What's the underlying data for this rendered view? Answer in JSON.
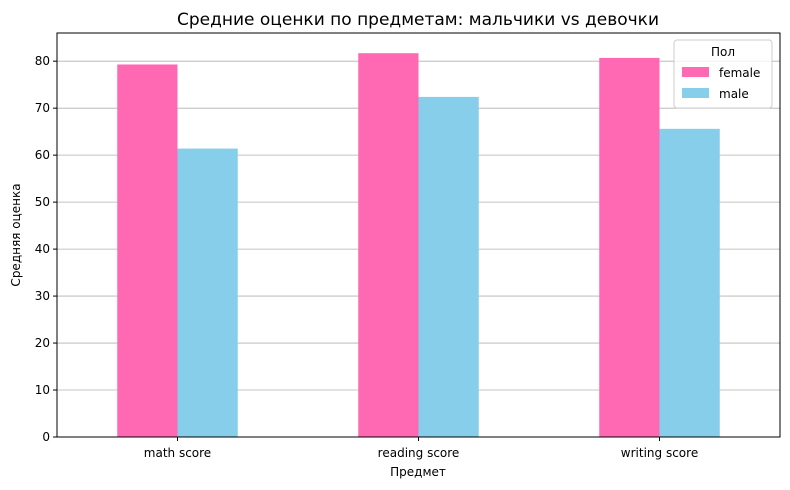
{
  "chart_data": {
    "type": "bar",
    "title": "Средние оценки по предметам: мальчики vs девочки",
    "xlabel": "Предмет",
    "ylabel": "Средняя оценка",
    "categories": [
      "math score",
      "reading score",
      "writing score"
    ],
    "series": [
      {
        "name": "female",
        "color": "#ff69b4",
        "values": [
          79.3,
          81.7,
          80.7
        ]
      },
      {
        "name": "male",
        "color": "#87ceeb",
        "values": [
          61.4,
          72.4,
          65.6
        ]
      }
    ],
    "ylim": [
      0,
      86
    ],
    "yticks": [
      0,
      10,
      20,
      30,
      40,
      50,
      60,
      70,
      80
    ],
    "grid": "y",
    "legend": {
      "title": "Пол",
      "placement": "top-right"
    }
  }
}
